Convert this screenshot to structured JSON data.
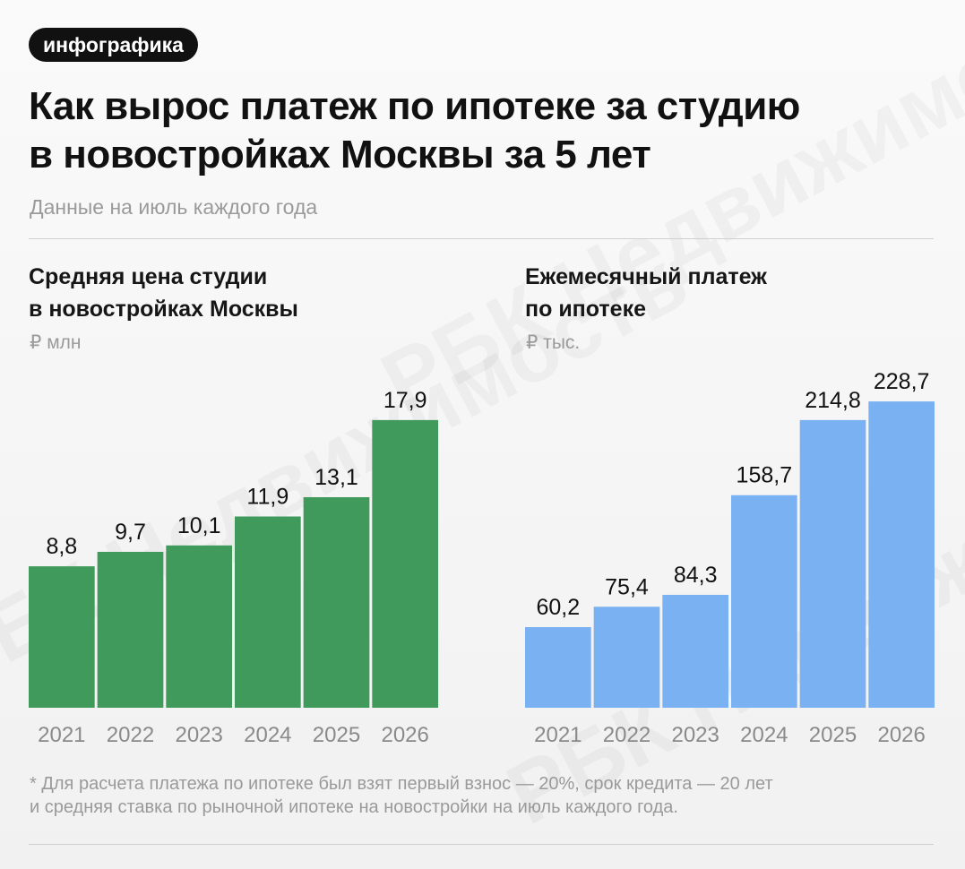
{
  "tag": "инфографика",
  "title_line1": "Как вырос платеж по ипотеке за студию",
  "title_line2": "в новостройках Москвы за 5 лет",
  "subtitle": "Данные на июль каждого года",
  "footnote_line1": "* Для расчета платежа по ипотеке был взят первый взнос — 20%, срок кредита — 20 лет",
  "footnote_line2": "и средняя ставка по рыночной ипотеке на новостройки на июль каждого года.",
  "watermark_text": "РБК Недвижимость",
  "colors": {
    "green": "#3f9a5c",
    "blue": "#79b1f2",
    "label": "#111111",
    "tick": "#8a8a8a"
  },
  "chart_data": [
    {
      "type": "bar",
      "title_line1": "Средняя цена студии",
      "title_line2": "в новостройках Москвы",
      "unit": "₽ млн",
      "categories": [
        "2021",
        "2022",
        "2023",
        "2024",
        "2025",
        "2026"
      ],
      "values": [
        8.8,
        9.7,
        10.1,
        11.9,
        13.1,
        17.9
      ],
      "labels": [
        "8,8",
        "9,7",
        "10,1",
        "11,9",
        "13,1",
        "17,9"
      ],
      "ylim": [
        0,
        20
      ],
      "color": "#3f9a5c"
    },
    {
      "type": "bar",
      "title_line1": "Ежемесячный платеж",
      "title_line2": "по ипотеке",
      "unit": "₽ тыс.",
      "categories": [
        "2021",
        "2022",
        "2023",
        "2024",
        "2025",
        "2026"
      ],
      "values": [
        60.2,
        75.4,
        84.3,
        158.7,
        214.8,
        228.7
      ],
      "labels": [
        "60,2",
        "75,4",
        "84,3",
        "158,7",
        "214,8",
        "228,7"
      ],
      "ylim": [
        0,
        240
      ],
      "color": "#79b1f2"
    }
  ]
}
